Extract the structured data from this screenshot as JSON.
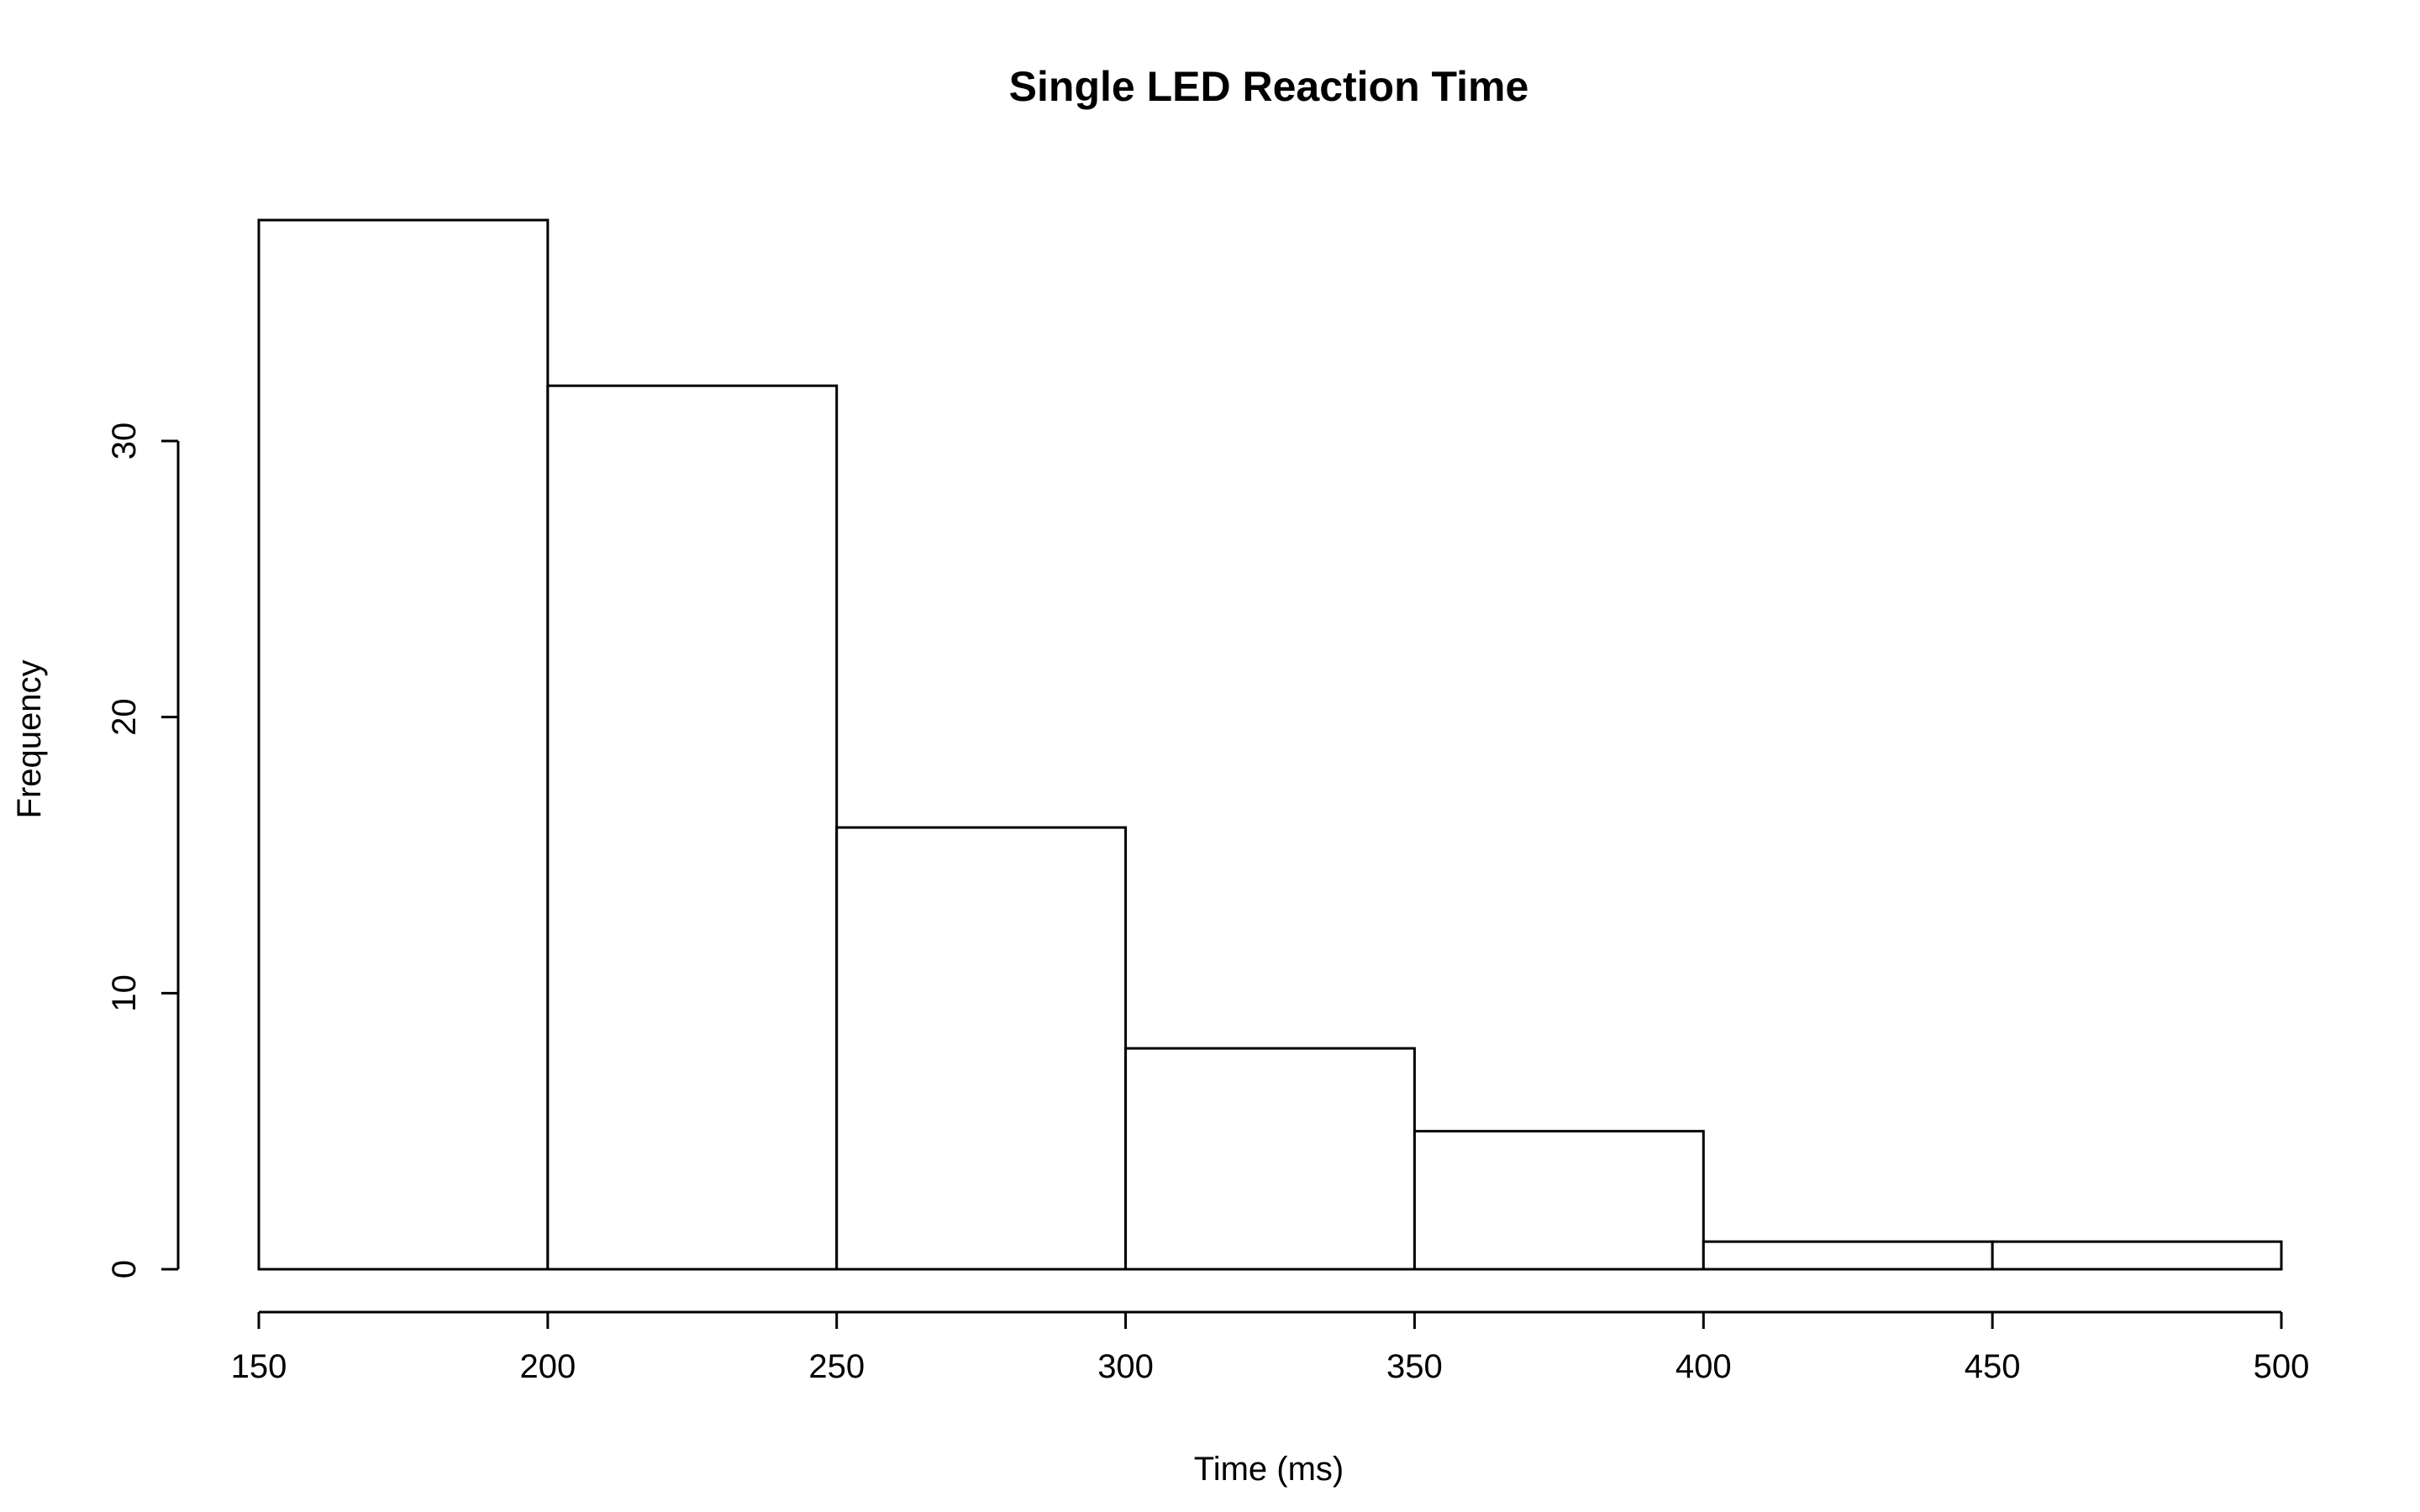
{
  "chart_data": {
    "type": "bar",
    "title": "Single LED Reaction Time",
    "xlabel": "Time (ms)",
    "ylabel": "Frequency",
    "bins": [
      {
        "start": 150,
        "end": 200,
        "value": 38
      },
      {
        "start": 200,
        "end": 250,
        "value": 32
      },
      {
        "start": 250,
        "end": 300,
        "value": 16
      },
      {
        "start": 300,
        "end": 350,
        "value": 8
      },
      {
        "start": 350,
        "end": 400,
        "value": 5
      },
      {
        "start": 400,
        "end": 450,
        "value": 1
      },
      {
        "start": 450,
        "end": 500,
        "value": 1
      }
    ],
    "xlim": [
      150,
      500
    ],
    "ylim": [
      0,
      38
    ],
    "x_ticks": [
      150,
      200,
      250,
      300,
      350,
      400,
      450,
      500
    ],
    "y_ticks": [
      0,
      10,
      20,
      30
    ],
    "grid": false,
    "legend": "none",
    "colors": {
      "bar_fill": "#ffffff",
      "bar_stroke": "#000000",
      "axis": "#000000"
    }
  }
}
